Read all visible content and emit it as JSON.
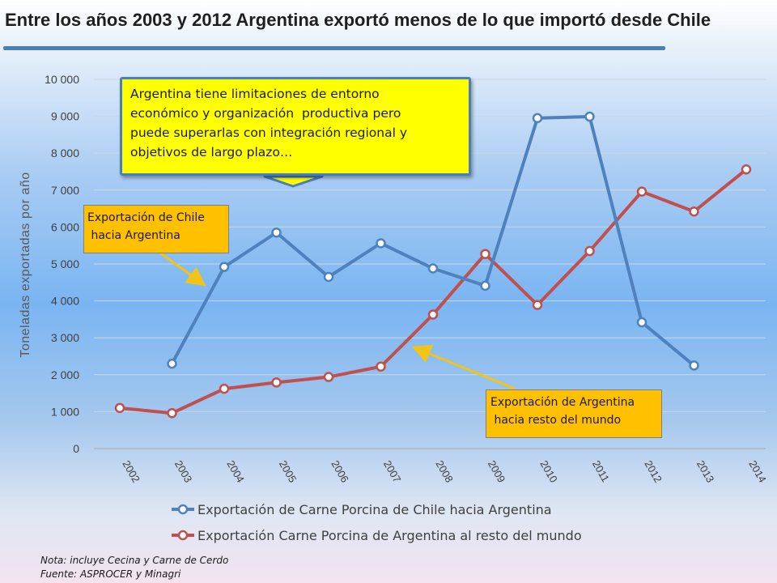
{
  "title": "Entre los años 2003 y 2012 Argentina exportó menos de lo que importó desde Chile",
  "callouts": {
    "main": [
      "Argentina tiene limitaciones de entorno",
      "económico y organización  productiva pero",
      "puede superarlas con integración regional y",
      "objetivos de largo plazo…"
    ],
    "chile": [
      "Exportación de Chile",
      " hacia Argentina"
    ],
    "argentina": [
      "Exportación de Argentina",
      " hacia resto del mundo"
    ]
  },
  "notes": {
    "line1": "Nota: incluye Cecina y Carne de Cerdo",
    "line2": "Fuente: ASPROCER y Minagri"
  },
  "colors": {
    "chile_series": "#4f81bd",
    "argentina_series": "#c0504d",
    "callout_main_bg": "#ffff00",
    "callout_small_bg": "#ffc000",
    "arrow": "#f0c419",
    "title_rule": "#4a7ebb"
  },
  "chart_data": {
    "type": "line",
    "ylabel": "Toneladas exportadas por año",
    "xlabel": "",
    "categories": [
      "2002",
      "2003",
      "2004",
      "2005",
      "2006",
      "2007",
      "2008",
      "2009",
      "2010",
      "2011",
      "2012",
      "2013",
      "2014"
    ],
    "ylim": [
      0,
      10000
    ],
    "yticks": [
      0,
      1000,
      2000,
      3000,
      4000,
      5000,
      6000,
      7000,
      8000,
      9000,
      10000
    ],
    "ytick_labels": [
      "0",
      "1 000",
      "2 000",
      "3 000",
      "4 000",
      "5 000",
      "6 000",
      "7 000",
      "8 000",
      "9 000",
      "10 000"
    ],
    "grid": true,
    "legend_position": "bottom",
    "series": [
      {
        "name": "Exportación de Carne Porcina de Chile hacia Argentina",
        "values": [
          null,
          2300,
          4920,
          5850,
          4650,
          5560,
          4880,
          4410,
          8950,
          8990,
          3420,
          2250,
          null
        ]
      },
      {
        "name": "Exportación Carne Porcina de Argentina al resto del mundo",
        "values": [
          1100,
          960,
          1620,
          1790,
          1940,
          2220,
          3630,
          5270,
          3890,
          5350,
          6960,
          6420,
          7560
        ]
      }
    ]
  }
}
